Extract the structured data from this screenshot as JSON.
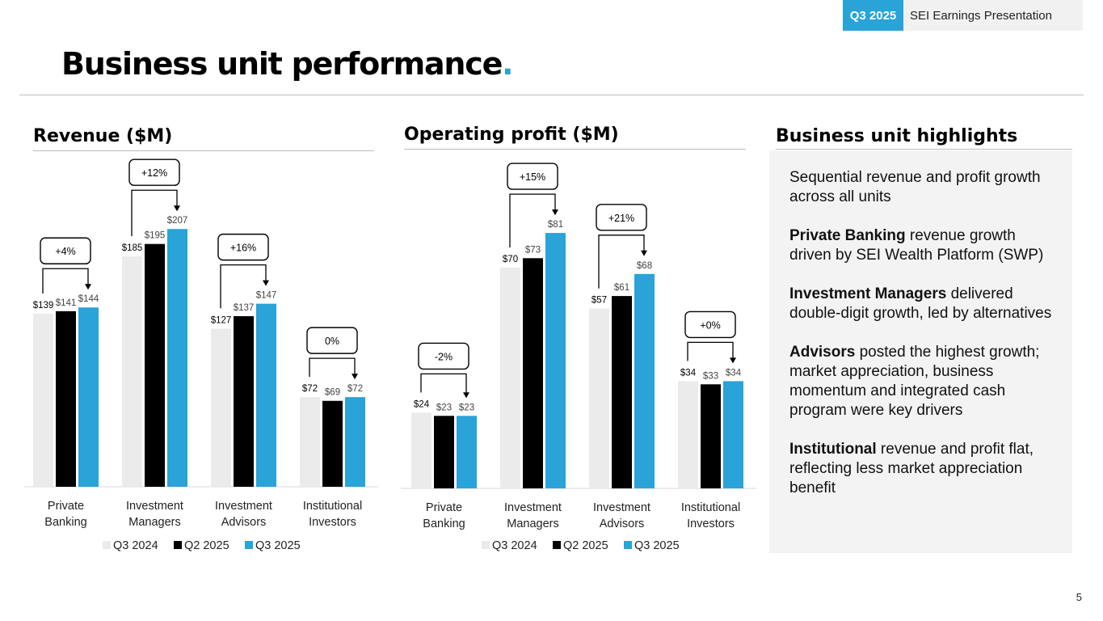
{
  "header": {
    "badge_quarter": "Q3 2025",
    "badge_title": "SEI Earnings Presentation"
  },
  "page": {
    "title": "Business unit performance",
    "title_dot": ".",
    "number": "5"
  },
  "colors": {
    "q3_2024": "#ebebeb",
    "q2_2025": "#000000",
    "q3_2025": "#29a3d8",
    "accent": "#29a3d8"
  },
  "chart_data": [
    {
      "type": "bar",
      "title": "Revenue ($M)",
      "categories": [
        "Private Banking",
        "Investment Managers",
        "Investment Advisors",
        "Institutional Investors"
      ],
      "series": [
        {
          "name": "Q3 2024",
          "values": [
            139,
            185,
            127,
            72
          ]
        },
        {
          "name": "Q2 2025",
          "values": [
            141,
            195,
            137,
            69
          ]
        },
        {
          "name": "Q3 2025",
          "values": [
            144,
            207,
            147,
            72
          ]
        }
      ],
      "value_labels": [
        [
          "$139",
          "$185",
          "$127",
          "$72"
        ],
        [
          "$141",
          "$195",
          "$137",
          "$69"
        ],
        [
          "$144",
          "$207",
          "$147",
          "$72"
        ]
      ],
      "growth_annotations": [
        "+4%",
        "+12%",
        "+16%",
        "0%"
      ],
      "legend_position": "bottom",
      "ylim": [
        0,
        230
      ],
      "grid": false
    },
    {
      "type": "bar",
      "title": "Operating profit ($M)",
      "categories": [
        "Private Banking",
        "Investment Managers",
        "Investment Advisors",
        "Institutional Investors"
      ],
      "series": [
        {
          "name": "Q3 2024",
          "values": [
            24,
            70,
            57,
            34
          ]
        },
        {
          "name": "Q2 2025",
          "values": [
            23,
            73,
            61,
            33
          ]
        },
        {
          "name": "Q3 2025",
          "values": [
            23,
            81,
            68,
            34
          ]
        }
      ],
      "value_labels": [
        [
          "$24",
          "$70",
          "$57",
          "$34"
        ],
        [
          "$23",
          "$73",
          "$61",
          "$33"
        ],
        [
          "$23",
          "$81",
          "$68",
          "$34"
        ]
      ],
      "growth_annotations": [
        "-2%",
        "+15%",
        "+21%",
        "+0%"
      ],
      "legend_position": "bottom",
      "ylim": [
        0,
        95
      ],
      "grid": false
    }
  ],
  "highlights": {
    "title": "Business unit highlights",
    "items": [
      {
        "bold": "",
        "text": "Sequential revenue and profit growth across all units"
      },
      {
        "bold": "Private Banking",
        "text": " revenue growth driven by SEI Wealth Platform (SWP)"
      },
      {
        "bold": "Investment Managers",
        "text": " delivered double-digit growth, led by alternatives"
      },
      {
        "bold": "Advisors",
        "text": " posted the highest growth; market appreciation, business momentum and integrated cash program were key drivers"
      },
      {
        "bold": "Institutional",
        "text": " revenue and profit flat, reflecting less market appreciation benefit"
      }
    ]
  }
}
